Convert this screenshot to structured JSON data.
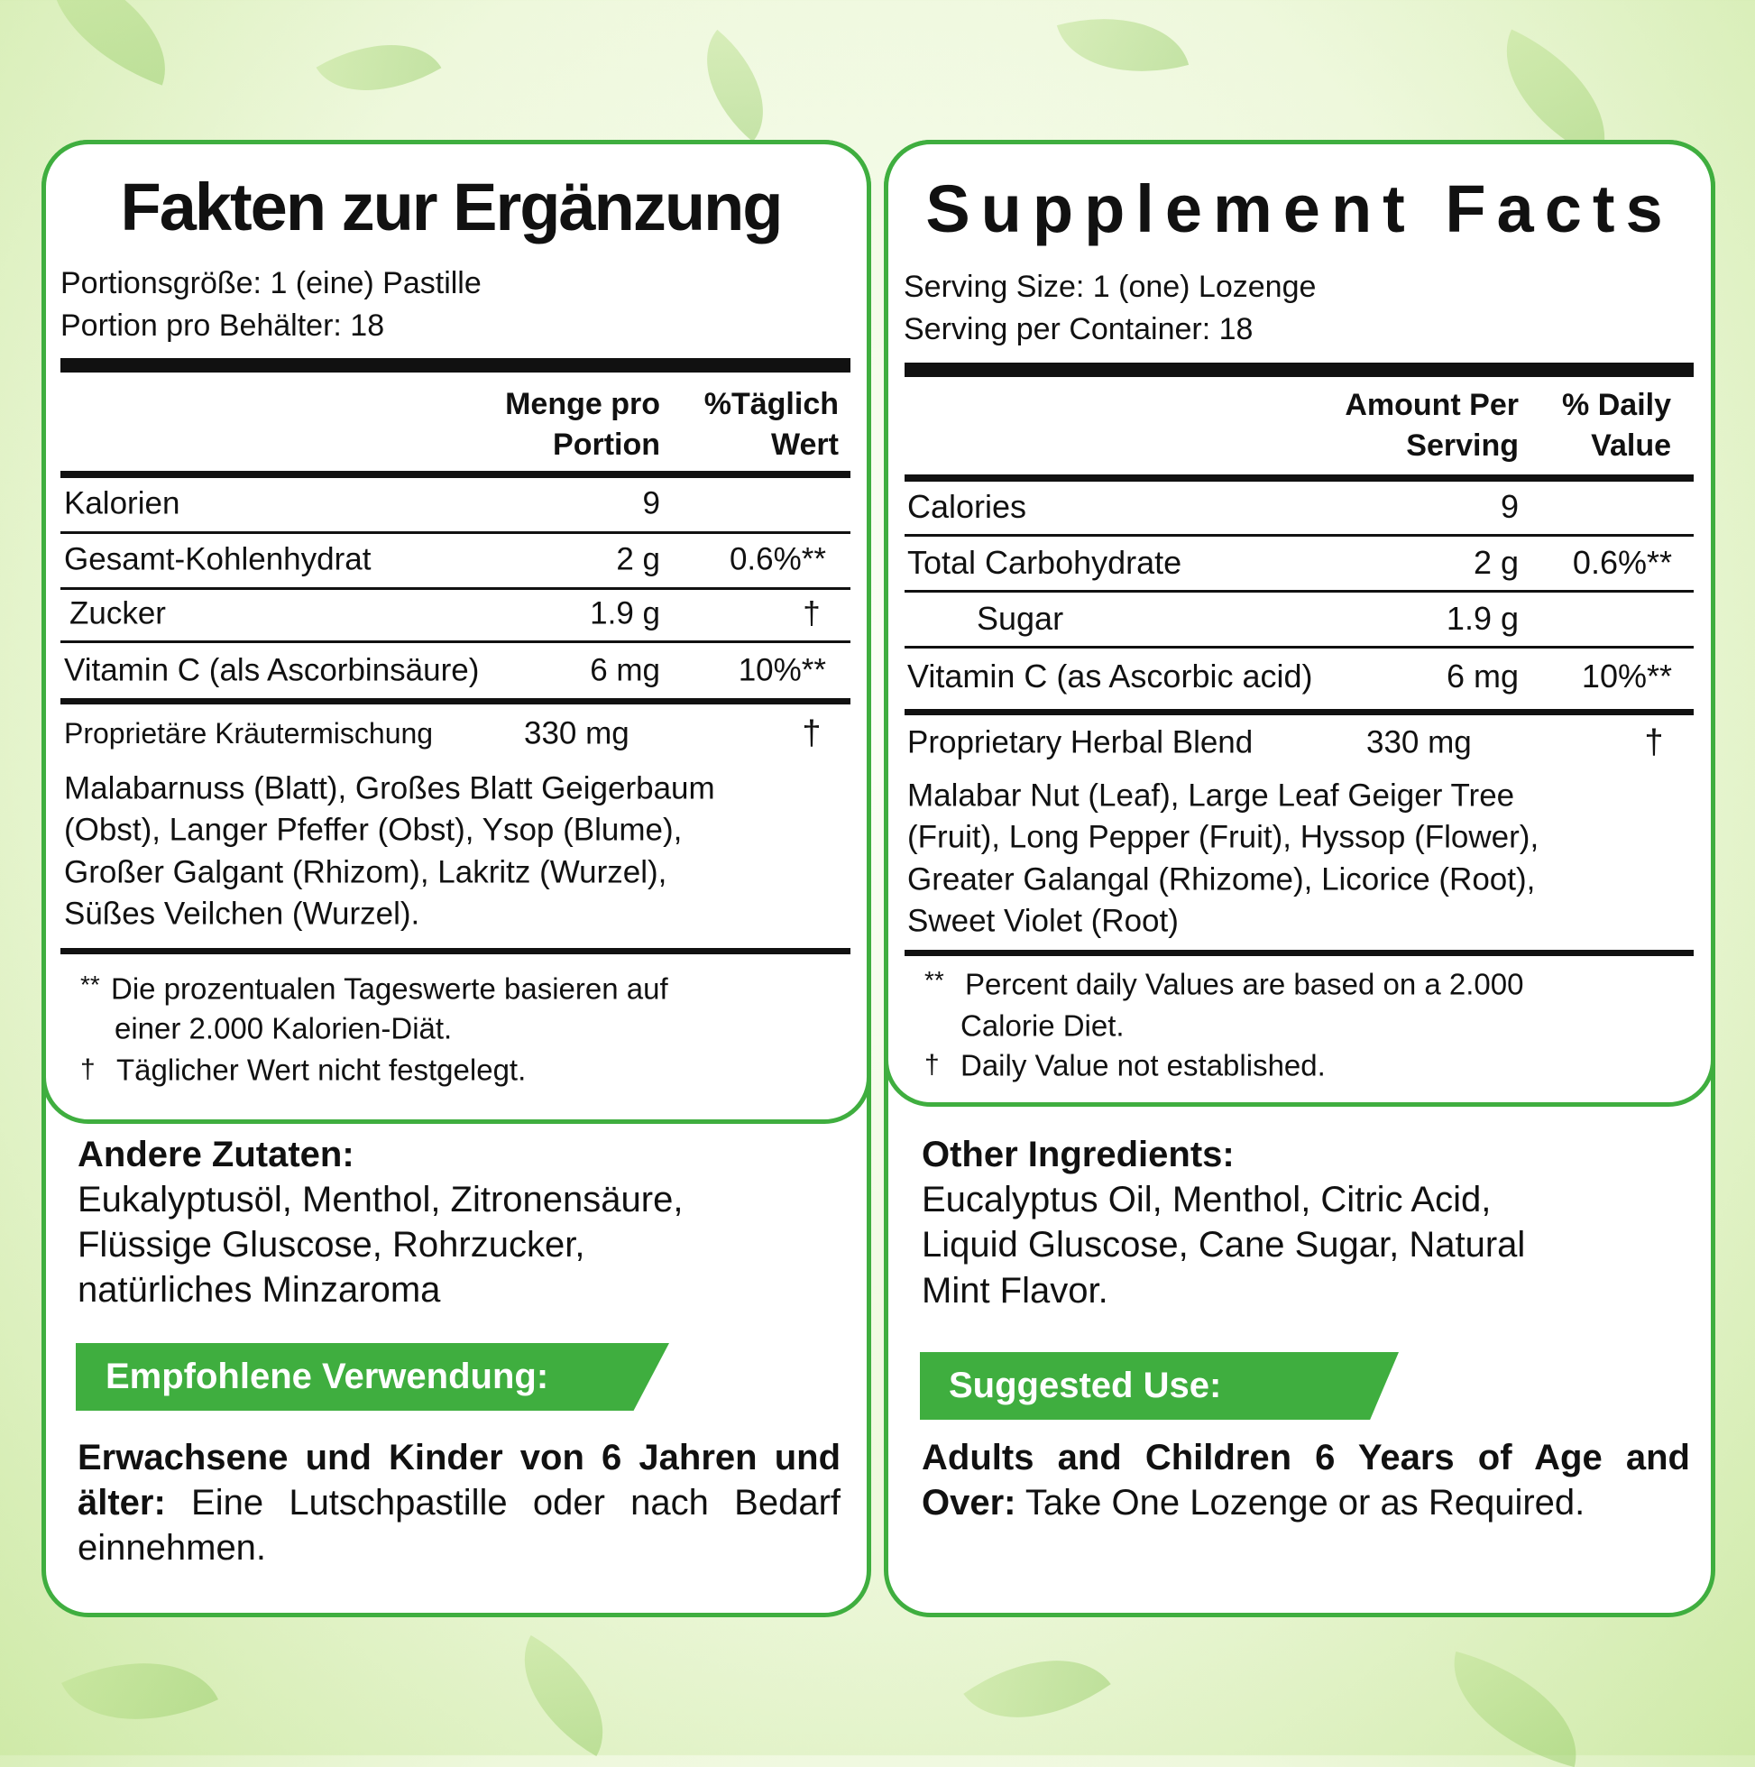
{
  "colors": {
    "accent_green": "#3fae3f",
    "text": "#111111",
    "background": "#eef8dc"
  },
  "left": {
    "title": "Fakten zur Ergänzung",
    "serving_size": "Portionsgröße: 1 (eine) Pastille",
    "servings_per_container": "Portion pro Behälter: 18",
    "header": {
      "amount_1": "Menge pro",
      "amount_2": "Portion",
      "dv_1": "%Täglich",
      "dv_2": "Wert"
    },
    "rows": [
      {
        "name": "Kalorien",
        "amount": "9",
        "dv": ""
      },
      {
        "name": "Gesamt-Kohlenhydrat",
        "amount": "2 g",
        "dv": "0.6%**"
      },
      {
        "name": "Zucker",
        "amount": "1.9 g",
        "dv": "†"
      },
      {
        "name": "Vitamin C (als Ascorbinsäure)",
        "amount": "6 mg",
        "dv": "10%**"
      }
    ],
    "blend": {
      "name": "Proprietäre Kräutermischung",
      "amount": "330 mg",
      "dv": "†",
      "ingredients": [
        "Malabarnuss (Blatt), Großes Blatt Geigerbaum",
        "(Obst), Langer Pfeffer (Obst), Ysop (Blume),",
        "Großer Galgant (Rhizom), Lakritz (Wurzel),",
        "Süßes Veilchen (Wurzel)."
      ]
    },
    "footnotes": {
      "dv_mark": "**",
      "dv_text_1": "Die prozentualen Tageswerte basieren auf",
      "dv_text_2": "einer 2.000 Kalorien-Diät.",
      "dagger": "†",
      "dagger_text": "Täglicher Wert nicht festgelegt."
    },
    "other_ingredients": {
      "heading": "Andere Zutaten:",
      "lines": [
        "Eukalyptusöl, Menthol, Zitronensäure,",
        "Flüssige Gluscose, Rohrzucker,",
        "natürliches Minzaroma"
      ]
    },
    "suggested_use": {
      "label": "Empfohlene Verwendung:",
      "bold": "Erwachsene und Kinder von 6 Jahren und älter:",
      "text": " Eine Lutschpastille oder nach Bedarf einnehmen."
    }
  },
  "right": {
    "title": "Supplement Facts",
    "serving_size": "Serving Size: 1 (one) Lozenge",
    "servings_per_container": "Serving per Container: 18",
    "header": {
      "amount_1": "Amount Per",
      "amount_2": "Serving",
      "dv_1": "% Daily",
      "dv_2": "Value"
    },
    "rows": [
      {
        "name": "Calories",
        "amount": "9",
        "dv": ""
      },
      {
        "name": "Total Carbohydrate",
        "amount": "2 g",
        "dv": "0.6%**"
      },
      {
        "name": "Sugar",
        "amount": "1.9 g",
        "dv": ""
      },
      {
        "name": "Vitamin C (as Ascorbic acid)",
        "amount": "6 mg",
        "dv": "10%**"
      }
    ],
    "blend": {
      "name": "Proprietary Herbal Blend",
      "amount": "330 mg",
      "dv": "†",
      "ingredients": [
        "Malabar Nut (Leaf), Large Leaf Geiger Tree",
        "(Fruit), Long Pepper (Fruit), Hyssop (Flower),",
        "Greater Galangal (Rhizome), Licorice (Root),",
        "Sweet Violet (Root)"
      ]
    },
    "footnotes": {
      "dv_mark": "**",
      "dv_text_1": "Percent daily Values are based on a 2.000",
      "dv_text_2": "Calorie Diet.",
      "dagger": "†",
      "dagger_text": "Daily Value not established."
    },
    "other_ingredients": {
      "heading": "Other Ingredients:",
      "lines": [
        "Eucalyptus Oil, Menthol, Citric Acid,",
        "Liquid Gluscose, Cane Sugar, Natural",
        "Mint Flavor."
      ]
    },
    "suggested_use": {
      "label": "Suggested Use:",
      "bold": "Adults and Children 6 Years of Age and Over:",
      "text": " Take One Lozenge or as Required."
    }
  }
}
